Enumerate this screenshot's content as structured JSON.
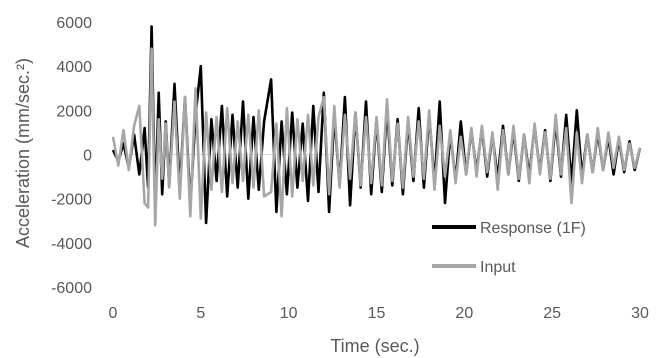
{
  "chart_data": {
    "type": "line",
    "title": "",
    "xlabel": "Time (sec.)",
    "ylabel": "Acceleration (mm/sec.²)",
    "xlim": [
      0,
      30
    ],
    "ylim": [
      -6000,
      6000
    ],
    "x_ticks": [
      "0",
      "5",
      "10",
      "15",
      "20",
      "25",
      "30"
    ],
    "y_ticks": [
      "6000",
      "4000",
      "2000",
      "0",
      "-2000",
      "-4000",
      "-6000"
    ],
    "grid": false,
    "legend_position": "lower-right",
    "series": [
      {
        "name": "Response (1F)",
        "color": "#000000",
        "x": [
          0.0,
          0.3,
          0.6,
          0.9,
          1.2,
          1.5,
          1.8,
          2.0,
          2.2,
          2.4,
          2.6,
          2.8,
          3.0,
          3.2,
          3.5,
          3.8,
          4.1,
          4.4,
          4.7,
          5.0,
          5.3,
          5.6,
          5.9,
          6.2,
          6.5,
          6.8,
          7.1,
          7.4,
          7.7,
          8.0,
          8.3,
          8.6,
          9.0,
          9.3,
          9.6,
          9.9,
          10.2,
          10.5,
          10.8,
          11.1,
          11.4,
          11.7,
          12.0,
          12.3,
          12.6,
          12.9,
          13.2,
          13.5,
          13.8,
          14.1,
          14.4,
          14.7,
          15.0,
          15.3,
          15.6,
          15.9,
          16.2,
          16.5,
          16.8,
          17.1,
          17.4,
          17.7,
          18.0,
          18.3,
          18.6,
          18.9,
          19.2,
          19.5,
          19.8,
          20.1,
          20.4,
          20.7,
          21.0,
          21.3,
          21.6,
          21.9,
          22.2,
          22.5,
          22.8,
          23.1,
          23.4,
          23.7,
          24.0,
          24.3,
          24.6,
          24.9,
          25.2,
          25.5,
          25.8,
          26.1,
          26.4,
          26.7,
          27.0,
          27.3,
          27.6,
          27.9,
          28.2,
          28.5,
          28.8,
          29.1,
          29.4,
          29.7,
          30.0
        ],
        "y": [
          200,
          -300,
          500,
          -600,
          900,
          -900,
          1200,
          -1500,
          5800,
          -2500,
          2800,
          -1800,
          1500,
          -1400,
          3200,
          -1600,
          2600,
          -2300,
          1800,
          4000,
          -3100,
          1600,
          -1200,
          2200,
          -1900,
          1800,
          -1500,
          2400,
          -2000,
          1700,
          -1600,
          1500,
          3400,
          -2600,
          1500,
          -1800,
          1900,
          -1500,
          1400,
          -2100,
          2200,
          -1700,
          2800,
          -2600,
          1800,
          -1400,
          2600,
          -2300,
          1900,
          -1500,
          2400,
          -1800,
          1600,
          -1700,
          2100,
          -1400,
          1600,
          -1800,
          1500,
          -1200,
          2100,
          -1500,
          1800,
          -1300,
          2400,
          -2200,
          1000,
          -1200,
          1500,
          -900,
          1100,
          -800,
          1200,
          -1000,
          900,
          -1100,
          1300,
          -900,
          1100,
          -1200,
          900,
          -1000,
          1300,
          -800,
          1100,
          -1200,
          1500,
          -1000,
          1800,
          -1300,
          2000,
          -1000,
          900,
          -800,
          1000,
          -700,
          800,
          -900,
          700,
          -800,
          600,
          -700,
          300
        ]
      },
      {
        "name": "Input",
        "color": "#a6a6a6",
        "x": [
          0.0,
          0.3,
          0.6,
          0.9,
          1.2,
          1.5,
          1.8,
          2.0,
          2.2,
          2.4,
          2.6,
          2.8,
          3.0,
          3.2,
          3.5,
          3.8,
          4.1,
          4.4,
          4.7,
          5.0,
          5.3,
          5.6,
          5.9,
          6.2,
          6.5,
          6.8,
          7.1,
          7.4,
          7.7,
          8.0,
          8.3,
          8.6,
          9.0,
          9.3,
          9.6,
          9.9,
          10.2,
          10.5,
          10.8,
          11.1,
          11.4,
          11.7,
          12.0,
          12.3,
          12.6,
          12.9,
          13.2,
          13.5,
          13.8,
          14.1,
          14.4,
          14.7,
          15.0,
          15.3,
          15.6,
          15.9,
          16.2,
          16.5,
          16.8,
          17.1,
          17.4,
          17.7,
          18.0,
          18.3,
          18.6,
          18.9,
          19.2,
          19.5,
          19.8,
          20.1,
          20.4,
          20.7,
          21.0,
          21.3,
          21.6,
          21.9,
          22.2,
          22.5,
          22.8,
          23.1,
          23.4,
          23.7,
          24.0,
          24.3,
          24.6,
          24.9,
          25.2,
          25.5,
          25.8,
          26.1,
          26.4,
          26.7,
          27.0,
          27.3,
          27.6,
          27.9,
          28.2,
          28.5,
          28.8,
          29.1,
          29.4,
          29.7,
          30.0
        ],
        "y": [
          800,
          -500,
          1100,
          -700,
          1300,
          2200,
          -2200,
          -2400,
          4800,
          -3200,
          1600,
          -1100,
          1400,
          -1500,
          2400,
          -2000,
          2600,
          -2800,
          3000,
          -2900,
          1900,
          -1600,
          1700,
          -1700,
          2100,
          -1300,
          1500,
          -1200,
          1800,
          -1500,
          2000,
          -1900,
          -1700,
          1400,
          -2800,
          2100,
          -1900,
          1600,
          -1200,
          1800,
          -1400,
          1700,
          2600,
          -1800,
          2200,
          -1500,
          1800,
          -1100,
          1900,
          -1400,
          1700,
          -1300,
          1700,
          -1400,
          2500,
          -1200,
          1400,
          -1500,
          1700,
          -1000,
          1500,
          -1100,
          2000,
          -1600,
          1300,
          -1000,
          1100,
          -1300,
          800,
          -900,
          1200,
          -1000,
          1300,
          -800,
          1000,
          -1600,
          1100,
          -900,
          1300,
          -1100,
          900,
          -1300,
          1400,
          -900,
          1000,
          -1100,
          1800,
          -900,
          1200,
          -2200,
          1000,
          -1300,
          900,
          -800,
          1200,
          -700,
          1000,
          -600,
          800,
          -700,
          500,
          -600,
          300
        ]
      }
    ]
  }
}
